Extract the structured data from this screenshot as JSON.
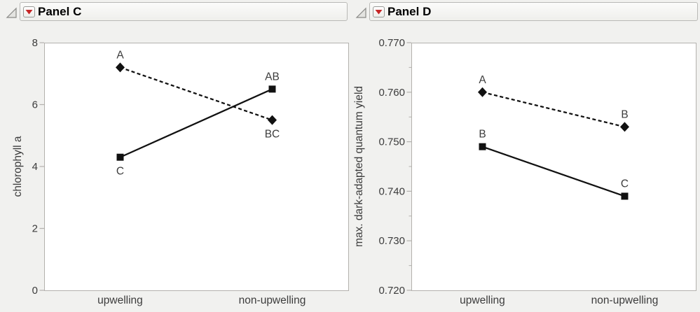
{
  "window": {
    "background_color": "#f1f1ef"
  },
  "panels": [
    {
      "title": "Panel C",
      "header_icons": {
        "disclosure": "open-disclosure-triangle",
        "menu": "red-triangle-menu"
      },
      "chart_data": {
        "type": "line",
        "subtype": "interaction-plot",
        "title": "",
        "xlabel": "",
        "ylabel": "chlorophyll a",
        "categories": [
          "upwelling",
          "non-upwelling"
        ],
        "ylim": [
          0,
          8
        ],
        "yticks": [
          8,
          6,
          4,
          2,
          0
        ],
        "ytick_labels": [
          "8",
          "6",
          "4",
          "2",
          "0"
        ],
        "grid": false,
        "legend": "none",
        "series": [
          {
            "style": "dashed-line-diamond-marker",
            "line_style": "dashed",
            "marker": "diamond",
            "values": [
              7.2,
              5.5
            ],
            "point_labels": [
              "A",
              "BC"
            ],
            "label_positions": [
              "above",
              "below"
            ]
          },
          {
            "style": "solid-line-square-marker",
            "line_style": "solid",
            "marker": "square",
            "values": [
              4.3,
              6.5
            ],
            "point_labels": [
              "C",
              "AB"
            ],
            "label_positions": [
              "below",
              "above"
            ]
          }
        ],
        "colors": {
          "series": "#111111",
          "frame": "#b3b1ad",
          "text": "#3c3c3c",
          "plot_background": "#ffffff"
        }
      }
    },
    {
      "title": "Panel D",
      "header_icons": {
        "disclosure": "open-disclosure-triangle",
        "menu": "red-triangle-menu"
      },
      "chart_data": {
        "type": "line",
        "subtype": "interaction-plot",
        "title": "",
        "xlabel": "",
        "ylabel": "max. dark-adapted quantum yield",
        "categories": [
          "upwelling",
          "non-upwelling"
        ],
        "ylim": [
          0.72,
          0.77
        ],
        "yticks": [
          0.77,
          0.76,
          0.75,
          0.74,
          0.73,
          0.72
        ],
        "ytick_labels": [
          "0.770",
          "0.760",
          "0.750",
          "0.740",
          "0.730",
          "0.720"
        ],
        "ytick_minor_step": 0.005,
        "grid": false,
        "legend": "none",
        "series": [
          {
            "style": "dashed-line-diamond-marker",
            "line_style": "dashed",
            "marker": "diamond",
            "values": [
              0.76,
              0.753
            ],
            "point_labels": [
              "A",
              "B"
            ],
            "label_positions": [
              "above",
              "above"
            ]
          },
          {
            "style": "solid-line-square-marker",
            "line_style": "solid",
            "marker": "square",
            "values": [
              0.749,
              0.739
            ],
            "point_labels": [
              "B",
              "C"
            ],
            "label_positions": [
              "above",
              "above"
            ]
          }
        ],
        "colors": {
          "series": "#111111",
          "frame": "#b3b1ad",
          "text": "#3c3c3c",
          "plot_background": "#ffffff"
        }
      }
    }
  ]
}
